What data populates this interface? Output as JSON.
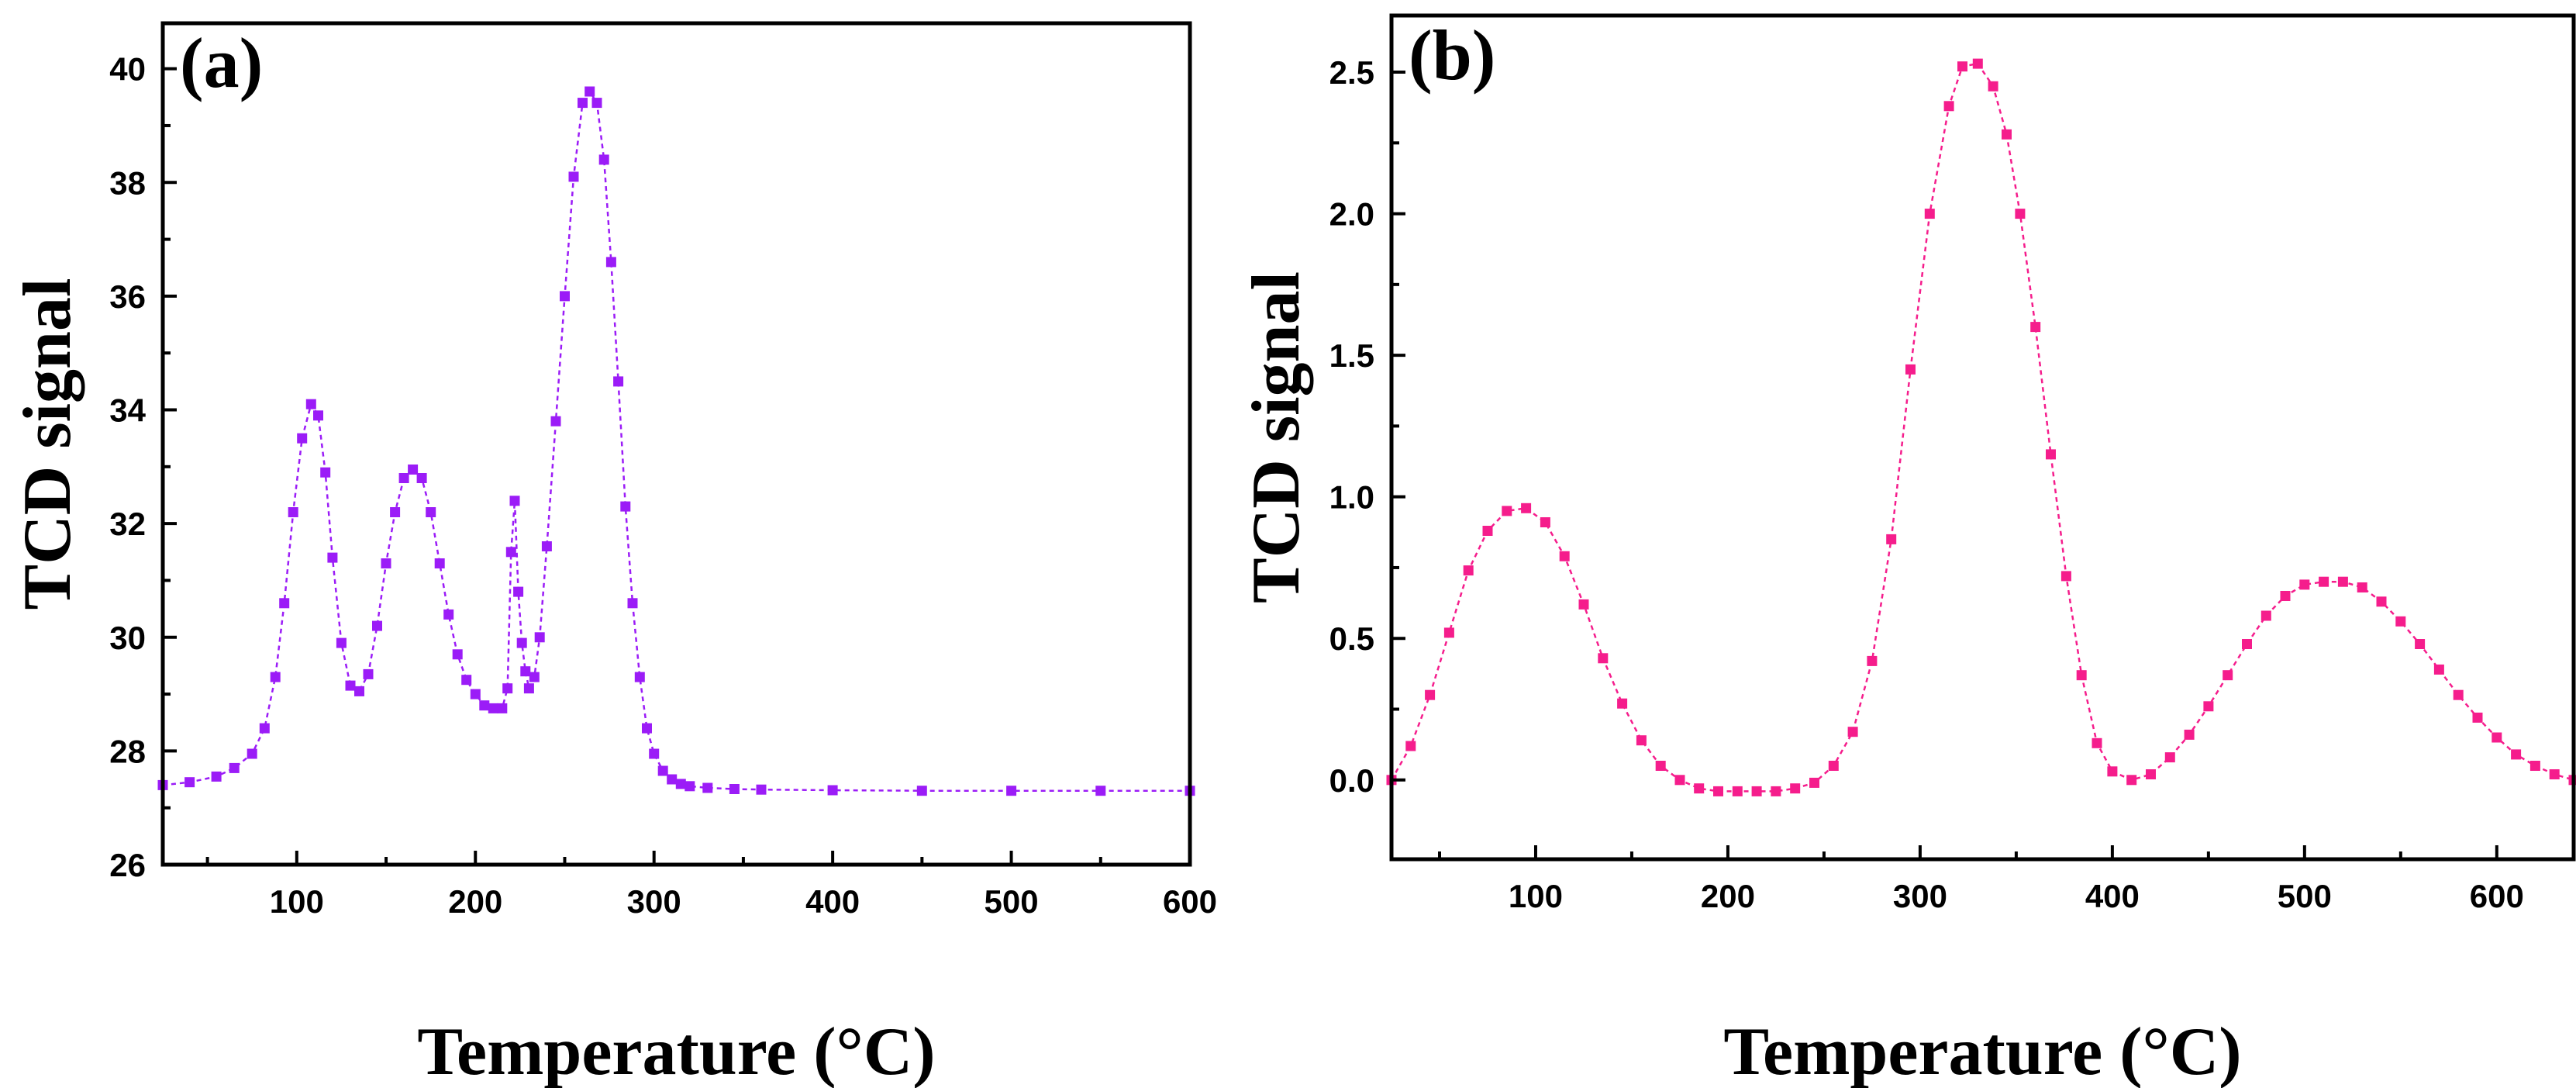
{
  "colors": {
    "panel_a": "#9B1CF7",
    "panel_b": "#F51D8C",
    "axes": "#000000"
  },
  "chart_data": [
    {
      "type": "scatter",
      "panel_label": "(a)",
      "xlabel": "Temperature (°C)",
      "ylabel": "TCD signal",
      "xlim": [
        25,
        600
      ],
      "ylim": [
        26,
        40.8
      ],
      "xticks": [
        100,
        200,
        300,
        400,
        500,
        600
      ],
      "xtick_labels": [
        "100",
        "200",
        "300",
        "400",
        "500",
        "600"
      ],
      "yticks": [
        26,
        28,
        30,
        32,
        34,
        36,
        38,
        40
      ],
      "ytick_labels": [
        "26",
        "28",
        "30",
        "32",
        "34",
        "36",
        "38",
        "40"
      ],
      "marker": "square",
      "series": [
        {
          "name": "TCD signal (a)",
          "color": "#9B1CF7",
          "x": [
            25,
            40,
            55,
            65,
            75,
            82,
            88,
            93,
            98,
            103,
            108,
            112,
            116,
            120,
            125,
            130,
            135,
            140,
            145,
            150,
            155,
            160,
            165,
            170,
            175,
            180,
            185,
            190,
            195,
            200,
            205,
            210,
            215,
            218,
            220,
            222,
            224,
            226,
            228,
            230,
            233,
            236,
            240,
            245,
            250,
            255,
            260,
            264,
            268,
            272,
            276,
            280,
            284,
            288,
            292,
            296,
            300,
            305,
            310,
            315,
            320,
            330,
            345,
            360,
            400,
            450,
            500,
            550,
            600
          ],
          "y": [
            27.4,
            27.45,
            27.55,
            27.7,
            27.95,
            28.4,
            29.3,
            30.6,
            32.2,
            33.5,
            34.1,
            33.9,
            32.9,
            31.4,
            29.9,
            29.15,
            29.05,
            29.35,
            30.2,
            31.3,
            32.2,
            32.8,
            32.95,
            32.8,
            32.2,
            31.3,
            30.4,
            29.7,
            29.25,
            29.0,
            28.8,
            28.75,
            28.75,
            29.1,
            31.5,
            32.4,
            30.8,
            29.9,
            29.4,
            29.1,
            29.3,
            30.0,
            31.6,
            33.8,
            36.0,
            38.1,
            39.4,
            39.6,
            39.4,
            38.4,
            36.6,
            34.5,
            32.3,
            30.6,
            29.3,
            28.4,
            27.95,
            27.65,
            27.5,
            27.42,
            27.38,
            27.35,
            27.33,
            27.32,
            27.31,
            27.3,
            27.3,
            27.3,
            27.3
          ]
        }
      ]
    },
    {
      "type": "scatter",
      "panel_label": "(b)",
      "xlabel": "Temperature (°C)",
      "ylabel": "TCD signal",
      "xlim": [
        25,
        640
      ],
      "ylim": [
        -0.28,
        2.7
      ],
      "xticks": [
        100,
        200,
        300,
        400,
        500,
        600
      ],
      "xtick_labels": [
        "100",
        "200",
        "300",
        "400",
        "500",
        "600"
      ],
      "yticks": [
        0.0,
        0.5,
        1.0,
        1.5,
        2.0,
        2.5
      ],
      "ytick_labels": [
        "0.0",
        "0.5",
        "1.0",
        "1.5",
        "2.0",
        "2.5"
      ],
      "marker": "square",
      "series": [
        {
          "name": "TCD signal (b)",
          "color": "#F51D8C",
          "x": [
            25,
            35,
            45,
            55,
            65,
            75,
            85,
            95,
            105,
            115,
            125,
            135,
            145,
            155,
            165,
            175,
            185,
            195,
            205,
            215,
            225,
            235,
            245,
            255,
            265,
            275,
            285,
            295,
            305,
            315,
            322,
            330,
            338,
            345,
            352,
            360,
            368,
            376,
            384,
            392,
            400,
            410,
            420,
            430,
            440,
            450,
            460,
            470,
            480,
            490,
            500,
            510,
            520,
            530,
            540,
            550,
            560,
            570,
            580,
            590,
            600,
            610,
            620,
            630,
            640
          ],
          "y": [
            0.0,
            0.12,
            0.3,
            0.52,
            0.74,
            0.88,
            0.95,
            0.96,
            0.91,
            0.79,
            0.62,
            0.43,
            0.27,
            0.14,
            0.05,
            0.0,
            -0.03,
            -0.04,
            -0.04,
            -0.04,
            -0.04,
            -0.03,
            -0.01,
            0.05,
            0.17,
            0.42,
            0.85,
            1.45,
            2.0,
            2.38,
            2.52,
            2.53,
            2.45,
            2.28,
            2.0,
            1.6,
            1.15,
            0.72,
            0.37,
            0.13,
            0.03,
            0.0,
            0.02,
            0.08,
            0.16,
            0.26,
            0.37,
            0.48,
            0.58,
            0.65,
            0.69,
            0.7,
            0.7,
            0.68,
            0.63,
            0.56,
            0.48,
            0.39,
            0.3,
            0.22,
            0.15,
            0.09,
            0.05,
            0.02,
            0.0
          ]
        }
      ]
    }
  ]
}
